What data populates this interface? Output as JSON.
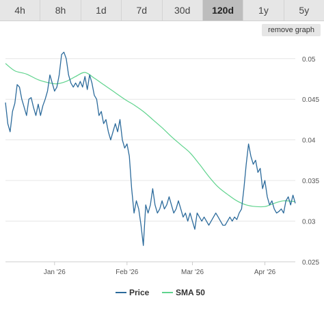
{
  "tabs": [
    {
      "label": "4h",
      "active": false
    },
    {
      "label": "8h",
      "active": false
    },
    {
      "label": "1d",
      "active": false
    },
    {
      "label": "7d",
      "active": false
    },
    {
      "label": "30d",
      "active": false
    },
    {
      "label": "120d",
      "active": true
    },
    {
      "label": "1y",
      "active": false
    },
    {
      "label": "5y",
      "active": false
    }
  ],
  "remove_graph_label": "remove graph",
  "colors": {
    "price": "#2b6a9b",
    "sma": "#5fd38d",
    "grid": "#e6e6e6"
  },
  "chart_data": {
    "type": "line",
    "title": "",
    "xlabel": "",
    "ylabel": "",
    "ylim": [
      0.025,
      0.052
    ],
    "xlim": [
      "2025-12-11",
      "2026-04-14"
    ],
    "y_ticks": [
      {
        "value": 0.05,
        "label": "0.05"
      },
      {
        "value": 0.045,
        "label": "0.045"
      },
      {
        "value": 0.04,
        "label": "0.04"
      },
      {
        "value": 0.035,
        "label": "0.035"
      },
      {
        "value": 0.03,
        "label": "0.03"
      },
      {
        "value": 0.025,
        "label": "0.025"
      }
    ],
    "x_ticks": [
      {
        "date": "2026-01-01",
        "label": "Jan '26"
      },
      {
        "date": "2026-02-01",
        "label": "Feb '26"
      },
      {
        "date": "2026-03-01",
        "label": "Mar '26"
      },
      {
        "date": "2026-04-01",
        "label": "Apr '26"
      }
    ],
    "grid": true,
    "legend_position": "bottom",
    "series": [
      {
        "name": "Price",
        "points": [
          [
            "2025-12-11",
            0.0446
          ],
          [
            "2025-12-12",
            0.042
          ],
          [
            "2025-12-13",
            0.041
          ],
          [
            "2025-12-14",
            0.0435
          ],
          [
            "2025-12-15",
            0.0445
          ],
          [
            "2025-12-16",
            0.0468
          ],
          [
            "2025-12-17",
            0.0465
          ],
          [
            "2025-12-18",
            0.045
          ],
          [
            "2025-12-19",
            0.044
          ],
          [
            "2025-12-20",
            0.043
          ],
          [
            "2025-12-21",
            0.045
          ],
          [
            "2025-12-22",
            0.0452
          ],
          [
            "2025-12-23",
            0.044
          ],
          [
            "2025-12-24",
            0.043
          ],
          [
            "2025-12-25",
            0.0444
          ],
          [
            "2025-12-26",
            0.043
          ],
          [
            "2025-12-27",
            0.0442
          ],
          [
            "2025-12-28",
            0.045
          ],
          [
            "2025-12-29",
            0.046
          ],
          [
            "2025-12-30",
            0.048
          ],
          [
            "2025-12-31",
            0.047
          ],
          [
            "2026-01-01",
            0.046
          ],
          [
            "2026-01-02",
            0.0465
          ],
          [
            "2026-01-03",
            0.048
          ],
          [
            "2026-01-04",
            0.0505
          ],
          [
            "2026-01-05",
            0.0508
          ],
          [
            "2026-01-06",
            0.05
          ],
          [
            "2026-01-07",
            0.048
          ],
          [
            "2026-01-08",
            0.047
          ],
          [
            "2026-01-09",
            0.0465
          ],
          [
            "2026-01-10",
            0.047
          ],
          [
            "2026-01-11",
            0.0465
          ],
          [
            "2026-01-12",
            0.0472
          ],
          [
            "2026-01-13",
            0.0465
          ],
          [
            "2026-01-14",
            0.0478
          ],
          [
            "2026-01-15",
            0.0462
          ],
          [
            "2026-01-16",
            0.048
          ],
          [
            "2026-01-17",
            0.047
          ],
          [
            "2026-01-18",
            0.0455
          ],
          [
            "2026-01-19",
            0.045
          ],
          [
            "2026-01-20",
            0.043
          ],
          [
            "2026-01-21",
            0.0435
          ],
          [
            "2026-01-22",
            0.042
          ],
          [
            "2026-01-23",
            0.0425
          ],
          [
            "2026-01-24",
            0.041
          ],
          [
            "2026-01-25",
            0.04
          ],
          [
            "2026-01-26",
            0.041
          ],
          [
            "2026-01-27",
            0.042
          ],
          [
            "2026-01-28",
            0.041
          ],
          [
            "2026-01-29",
            0.0425
          ],
          [
            "2026-01-30",
            0.04
          ],
          [
            "2026-01-31",
            0.039
          ],
          [
            "2026-02-01",
            0.0395
          ],
          [
            "2026-02-02",
            0.038
          ],
          [
            "2026-02-03",
            0.034
          ],
          [
            "2026-02-04",
            0.031
          ],
          [
            "2026-02-05",
            0.0325
          ],
          [
            "2026-02-06",
            0.0315
          ],
          [
            "2026-02-07",
            0.0295
          ],
          [
            "2026-02-08",
            0.027
          ],
          [
            "2026-02-09",
            0.032
          ],
          [
            "2026-02-10",
            0.031
          ],
          [
            "2026-02-11",
            0.032
          ],
          [
            "2026-02-12",
            0.034
          ],
          [
            "2026-02-13",
            0.032
          ],
          [
            "2026-02-14",
            0.031
          ],
          [
            "2026-02-15",
            0.0315
          ],
          [
            "2026-02-16",
            0.0325
          ],
          [
            "2026-02-17",
            0.0315
          ],
          [
            "2026-02-18",
            0.032
          ],
          [
            "2026-02-19",
            0.033
          ],
          [
            "2026-02-20",
            0.032
          ],
          [
            "2026-02-21",
            0.031
          ],
          [
            "2026-02-22",
            0.0315
          ],
          [
            "2026-02-23",
            0.0325
          ],
          [
            "2026-02-24",
            0.0315
          ],
          [
            "2026-02-25",
            0.0305
          ],
          [
            "2026-02-26",
            0.031
          ],
          [
            "2026-02-27",
            0.03
          ],
          [
            "2026-02-28",
            0.031
          ],
          [
            "2026-03-01",
            0.03
          ],
          [
            "2026-03-02",
            0.029
          ],
          [
            "2026-03-03",
            0.031
          ],
          [
            "2026-03-04",
            0.0305
          ],
          [
            "2026-03-05",
            0.03
          ],
          [
            "2026-03-06",
            0.0305
          ],
          [
            "2026-03-07",
            0.03
          ],
          [
            "2026-03-08",
            0.0295
          ],
          [
            "2026-03-09",
            0.03
          ],
          [
            "2026-03-10",
            0.0305
          ],
          [
            "2026-03-11",
            0.031
          ],
          [
            "2026-03-12",
            0.0305
          ],
          [
            "2026-03-13",
            0.03
          ],
          [
            "2026-03-14",
            0.0295
          ],
          [
            "2026-03-15",
            0.0295
          ],
          [
            "2026-03-16",
            0.03
          ],
          [
            "2026-03-17",
            0.0305
          ],
          [
            "2026-03-18",
            0.03
          ],
          [
            "2026-03-19",
            0.0305
          ],
          [
            "2026-03-20",
            0.0302
          ],
          [
            "2026-03-21",
            0.031
          ],
          [
            "2026-03-22",
            0.0315
          ],
          [
            "2026-03-23",
            0.034
          ],
          [
            "2026-03-24",
            0.037
          ],
          [
            "2026-03-25",
            0.0395
          ],
          [
            "2026-03-26",
            0.038
          ],
          [
            "2026-03-27",
            0.037
          ],
          [
            "2026-03-28",
            0.0375
          ],
          [
            "2026-03-29",
            0.036
          ],
          [
            "2026-03-30",
            0.0365
          ],
          [
            "2026-03-31",
            0.034
          ],
          [
            "2026-04-01",
            0.035
          ],
          [
            "2026-04-02",
            0.033
          ],
          [
            "2026-04-03",
            0.032
          ],
          [
            "2026-04-04",
            0.0325
          ],
          [
            "2026-04-05",
            0.0315
          ],
          [
            "2026-04-06",
            0.031
          ],
          [
            "2026-04-07",
            0.0312
          ],
          [
            "2026-04-08",
            0.0315
          ],
          [
            "2026-04-09",
            0.031
          ],
          [
            "2026-04-10",
            0.0325
          ],
          [
            "2026-04-11",
            0.033
          ],
          [
            "2026-04-12",
            0.032
          ],
          [
            "2026-04-13",
            0.0332
          ],
          [
            "2026-04-14",
            0.0322
          ]
        ]
      },
      {
        "name": "SMA 50",
        "points": [
          [
            "2025-12-11",
            0.0494
          ],
          [
            "2025-12-15",
            0.0485
          ],
          [
            "2025-12-20",
            0.0481
          ],
          [
            "2025-12-25",
            0.0474
          ],
          [
            "2025-12-30",
            0.047
          ],
          [
            "2026-01-02",
            0.0469
          ],
          [
            "2026-01-06",
            0.0472
          ],
          [
            "2026-01-10",
            0.0478
          ],
          [
            "2026-01-14",
            0.0483
          ],
          [
            "2026-01-18",
            0.0476
          ],
          [
            "2026-01-22",
            0.0468
          ],
          [
            "2026-01-26",
            0.046
          ],
          [
            "2026-01-31",
            0.045
          ],
          [
            "2026-02-04",
            0.0443
          ],
          [
            "2026-02-08",
            0.0435
          ],
          [
            "2026-02-12",
            0.0425
          ],
          [
            "2026-02-16",
            0.0415
          ],
          [
            "2026-02-20",
            0.0404
          ],
          [
            "2026-02-24",
            0.0394
          ],
          [
            "2026-02-28",
            0.0384
          ],
          [
            "2026-03-04",
            0.037
          ],
          [
            "2026-03-08",
            0.0355
          ],
          [
            "2026-03-12",
            0.0342
          ],
          [
            "2026-03-16",
            0.0333
          ],
          [
            "2026-03-20",
            0.0325
          ],
          [
            "2026-03-24",
            0.032
          ],
          [
            "2026-03-28",
            0.0318
          ],
          [
            "2026-04-01",
            0.0318
          ],
          [
            "2026-04-05",
            0.0322
          ],
          [
            "2026-04-09",
            0.0325
          ],
          [
            "2026-04-14",
            0.0324
          ]
        ]
      }
    ]
  }
}
